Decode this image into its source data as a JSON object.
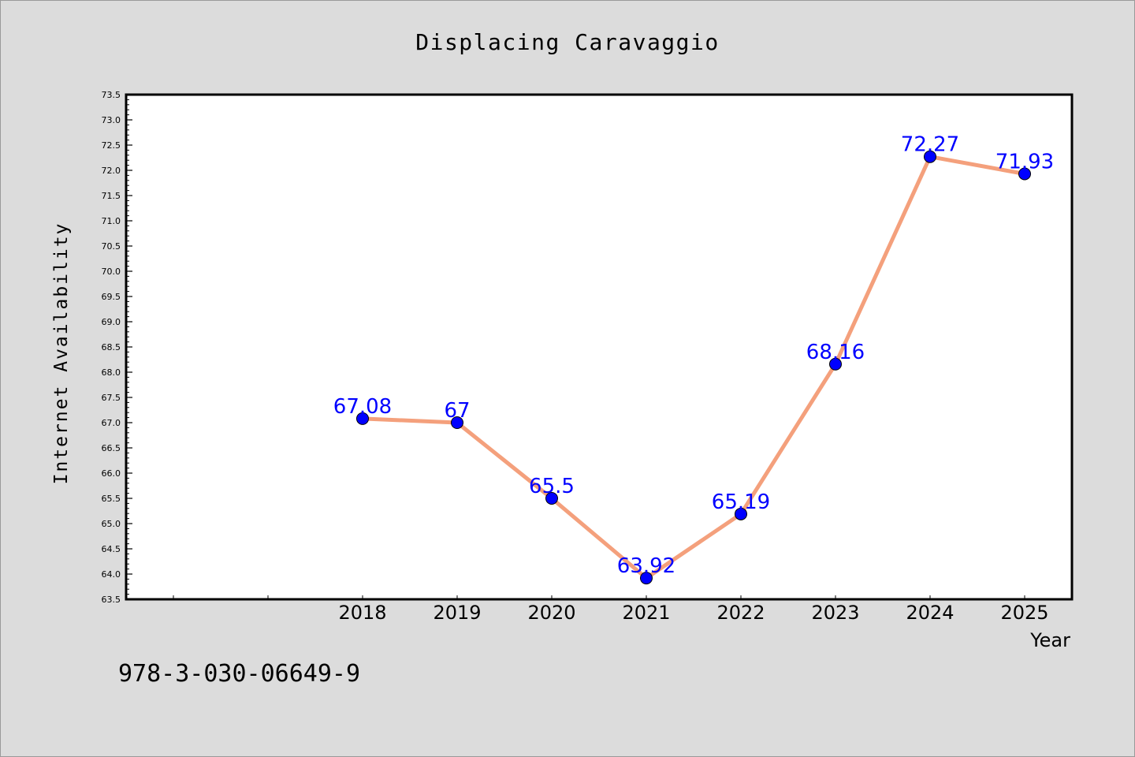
{
  "chart_data": {
    "type": "line",
    "title": "Displacing Caravaggio",
    "xlabel": "Year",
    "ylabel": "Internet Availability",
    "x": [
      "2018",
      "2019",
      "2020",
      "2021",
      "2022",
      "2023",
      "2024",
      "2025"
    ],
    "series": [
      {
        "values": [
          67.08,
          67,
          65.5,
          63.92,
          65.19,
          68.16,
          72.27,
          71.93
        ],
        "data_labels": [
          "67.08",
          "67",
          "65.5",
          "63.92",
          "65.19",
          "68.16",
          "72.27",
          "71.93"
        ]
      }
    ],
    "ylim": [
      63.5,
      73.5
    ],
    "yticks": [
      "63.5",
      "64.0",
      "64.5",
      "65.0",
      "65.5",
      "66.0",
      "66.5",
      "67.0",
      "67.5",
      "68.0",
      "68.5",
      "69.0",
      "69.5",
      "70.0",
      "70.5",
      "71.0",
      "71.5",
      "72.0",
      "72.5",
      "73.0",
      "73.5"
    ],
    "grid": false,
    "legend": "none",
    "colors": {
      "line": "#f4a07c",
      "marker": "#0000ff",
      "data_label": "#0000ff",
      "background": "#dcdcdc",
      "plot_background": "#ffffff"
    }
  },
  "footer": {
    "isbn": "978-3-030-06649-9"
  }
}
